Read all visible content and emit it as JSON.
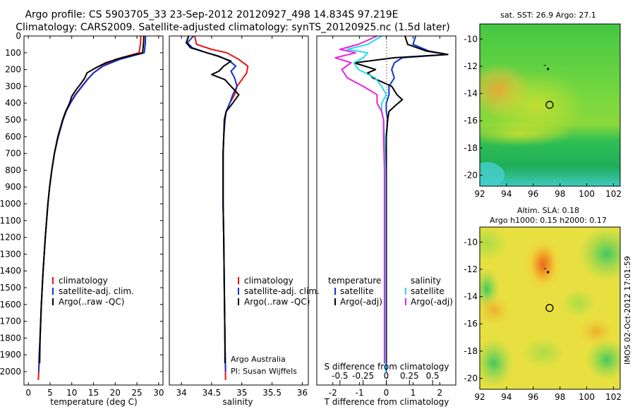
{
  "header": {
    "title_line1": "Argo profile: CS 5903705_33 23-Sep-2012 20120927_498 14.834S 97.219E",
    "title_line2": "Climatology: CARS2009. Satellite-adjusted climatology: synTS_20120925.nc (1.5d later)"
  },
  "colors": {
    "climatology": "#ee1111",
    "satellite": "#1133cc",
    "argo": "#000000",
    "satellite_salinity": "#22ddee",
    "argo_salinity": "#ee22dd",
    "map_float_marker": "#000000"
  },
  "chart_data": [
    {
      "id": "temperature",
      "type": "line",
      "xlabel": "temperature (deg C)",
      "xlim": [
        -1,
        31
      ],
      "ylim": [
        2080,
        0
      ],
      "xticks": [
        0,
        5,
        10,
        15,
        20,
        25,
        30
      ],
      "yticks": [
        0,
        100,
        200,
        300,
        400,
        500,
        600,
        700,
        800,
        900,
        1000,
        1100,
        1200,
        1300,
        1400,
        1500,
        1600,
        1700,
        1800,
        1900,
        2000
      ],
      "legend": [
        "climatology",
        "satellite-adj. clim.",
        "Argo(..raw -QC)"
      ],
      "series": [
        {
          "name": "climatology",
          "color": "#ee1111",
          "depth": [
            0,
            50,
            100,
            140,
            180,
            220,
            260,
            300,
            350,
            400,
            450,
            500,
            600,
            700,
            800,
            900,
            1000,
            1200,
            1400,
            1600,
            1800,
            2000,
            2050
          ],
          "values": [
            25.9,
            25.8,
            25.5,
            20.0,
            17.0,
            15.0,
            13.5,
            12.3,
            10.8,
            9.6,
            8.6,
            7.9,
            6.8,
            6.0,
            5.4,
            4.9,
            4.5,
            3.9,
            3.4,
            3.0,
            2.7,
            2.4,
            2.3
          ]
        },
        {
          "name": "satellite-adj. clim.",
          "color": "#1133cc",
          "depth": [
            0,
            50,
            100,
            140,
            180,
            220,
            260,
            300,
            350,
            400,
            450,
            500,
            600,
            700,
            800,
            900,
            1000,
            1200,
            1400,
            1600,
            1800,
            1900,
            2000
          ],
          "values": [
            27.0,
            26.9,
            26.7,
            21.0,
            17.2,
            15.0,
            13.6,
            12.4,
            10.9,
            9.7,
            8.7,
            8.0,
            6.9,
            6.0,
            5.4,
            4.9,
            4.5,
            3.9,
            3.4,
            3.0,
            2.7,
            2.5,
            2.4
          ]
        },
        {
          "name": "Argo(..raw -QC)",
          "color": "#000000",
          "depth": [
            0,
            50,
            100,
            130,
            160,
            190,
            220,
            250,
            280,
            320,
            360,
            400,
            450,
            500,
            600,
            700,
            800,
            900,
            1000,
            1200,
            1400,
            1600,
            1800,
            1950
          ],
          "values": [
            26.6,
            26.5,
            26.3,
            21.5,
            17.8,
            15.5,
            13.5,
            13.0,
            12.2,
            11.0,
            10.0,
            9.5,
            8.6,
            7.9,
            6.8,
            6.0,
            5.4,
            4.9,
            4.5,
            3.9,
            3.4,
            3.0,
            2.7,
            2.6
          ]
        }
      ]
    },
    {
      "id": "salinity",
      "type": "line",
      "xlabel": "salinity",
      "xlim": [
        33.8,
        36.1
      ],
      "ylim": [
        2080,
        0
      ],
      "xticks": [
        34,
        34.5,
        35,
        35.5,
        36
      ],
      "xticklabels": [
        "34",
        "34.5",
        "35",
        "35.5",
        "36"
      ],
      "legend": [
        "climatology",
        "satellite-adj. clim.",
        "Argo(..raw -QC)"
      ],
      "annotation": [
        "Argo Australia",
        "PI: Susan Wijffels"
      ],
      "series": [
        {
          "name": "climatology",
          "color": "#ee1111",
          "depth": [
            0,
            50,
            80,
            100,
            140,
            180,
            220,
            260,
            300,
            350,
            400,
            450,
            500,
            600,
            700,
            800,
            1000,
            1200,
            1500,
            1800,
            2050
          ],
          "values": [
            34.22,
            34.25,
            34.5,
            34.75,
            34.95,
            35.1,
            35.08,
            35.0,
            34.92,
            34.88,
            34.8,
            34.74,
            34.72,
            34.7,
            34.69,
            34.69,
            34.69,
            34.7,
            34.71,
            34.72,
            34.73
          ]
        },
        {
          "name": "satellite-adj. clim.",
          "color": "#1133cc",
          "depth": [
            0,
            40,
            70,
            100,
            120,
            150,
            180,
            210,
            250,
            300,
            350,
            400,
            450,
            500,
            600,
            700,
            800,
            1000,
            1200,
            1500,
            1800,
            2000
          ],
          "values": [
            34.2,
            34.1,
            34.18,
            34.42,
            34.62,
            34.8,
            34.9,
            34.82,
            34.88,
            34.92,
            34.85,
            34.8,
            34.74,
            34.72,
            34.7,
            34.69,
            34.69,
            34.69,
            34.7,
            34.71,
            34.72,
            34.73
          ]
        },
        {
          "name": "Argo(..raw -QC)",
          "color": "#000000",
          "depth": [
            0,
            40,
            70,
            100,
            120,
            150,
            180,
            210,
            230,
            260,
            300,
            350,
            400,
            450,
            500,
            600,
            700,
            800,
            1000,
            1200,
            1500,
            1800,
            1950
          ],
          "values": [
            34.12,
            34.08,
            34.15,
            34.42,
            34.6,
            34.82,
            34.7,
            34.62,
            34.5,
            34.72,
            34.82,
            34.95,
            34.85,
            34.74,
            34.71,
            34.7,
            34.69,
            34.69,
            34.69,
            34.7,
            34.71,
            34.72,
            34.72
          ]
        }
      ]
    },
    {
      "id": "difference",
      "type": "line",
      "xlabel": "T difference from climatology",
      "top_axis_label": "S difference from climatology",
      "xlim": [
        -2.6,
        2.6
      ],
      "ylim": [
        2080,
        0
      ],
      "xticks": [
        -2,
        -1,
        0,
        1,
        2
      ],
      "top_ticks": [
        -0.5,
        -0.25,
        0,
        0.25,
        0.5
      ],
      "top_ticklabels": [
        "-0.5",
        "-0.25",
        "0",
        "0.25",
        "0.5"
      ],
      "legend_headers": [
        "temperature",
        "salinity"
      ],
      "legend": [
        "satellite",
        "Argo(-adj)",
        "satellite",
        "Argo(-adj)"
      ],
      "series": [
        {
          "name": "temperature satellite",
          "color": "#1133cc",
          "depth": [
            0,
            50,
            90,
            110,
            130,
            160,
            200,
            250,
            300,
            350,
            400,
            450,
            500,
            600,
            800,
            1000,
            1500,
            2000
          ],
          "values": [
            1.1,
            1.0,
            1.6,
            2.3,
            0.6,
            0.3,
            0.2,
            0.3,
            0.1,
            0.1,
            0.0,
            0.0,
            0.05,
            0.0,
            0.0,
            0.0,
            0.0,
            0.0
          ]
        },
        {
          "name": "temperature Argo(-adj)",
          "color": "#000000",
          "depth": [
            0,
            50,
            90,
            110,
            130,
            160,
            200,
            220,
            250,
            300,
            350,
            380,
            420,
            450,
            500,
            600,
            800,
            1000,
            1500,
            1950
          ],
          "values": [
            0.7,
            0.8,
            1.5,
            2.3,
            0.3,
            -1.2,
            -0.4,
            -0.7,
            -0.5,
            0.2,
            0.4,
            0.6,
            0.3,
            0.1,
            0.05,
            0.0,
            0.0,
            0.0,
            0.0,
            0.0
          ]
        },
        {
          "name": "salinity satellite",
          "color": "#22ddee",
          "depth": [
            0,
            50,
            80,
            100,
            130,
            160,
            200,
            250,
            300,
            350,
            400,
            450,
            500,
            600,
            800,
            1000,
            1500,
            2000
          ],
          "values": [
            -0.05,
            -0.2,
            -0.42,
            -0.2,
            -0.25,
            -0.35,
            -0.3,
            -0.12,
            -0.05,
            0.0,
            -0.05,
            -0.05,
            -0.03,
            -0.02,
            -0.01,
            -0.01,
            -0.01,
            -0.01
          ]
        },
        {
          "name": "salinity Argo(-adj)",
          "color": "#ee22dd",
          "depth": [
            0,
            50,
            80,
            100,
            130,
            160,
            200,
            250,
            300,
            350,
            400,
            450,
            500,
            600,
            800,
            1000,
            1500,
            1950
          ],
          "values": [
            -0.1,
            -0.3,
            -0.5,
            -0.33,
            -0.55,
            -0.38,
            -0.48,
            -0.42,
            -0.25,
            -0.1,
            -0.1,
            -0.05,
            -0.03,
            -0.03,
            -0.02,
            -0.02,
            -0.02,
            -0.02
          ]
        }
      ]
    },
    {
      "id": "sst_map",
      "type": "heatmap",
      "title": "sat. SST: 26.9 Argo: 27.1",
      "xlim": [
        92,
        102.5
      ],
      "ylim": [
        -20.8,
        -8.9
      ],
      "xticks": [
        92,
        94,
        96,
        98,
        100,
        102
      ],
      "yticks": [
        -10,
        -12,
        -14,
        -16,
        -18,
        -20
      ],
      "float_position": {
        "lon": 97.219,
        "lat": -14.834
      },
      "previous_position": {
        "lon": 97.0,
        "lat": -12.1
      }
    },
    {
      "id": "sla_map",
      "type": "heatmap",
      "title_line1": "Altim. SLA: 0.18",
      "title_line2": "Argo h1000: 0.15 h2000: 0.17",
      "xlim": [
        92,
        102.5
      ],
      "ylim": [
        -20.8,
        -8.9
      ],
      "xticks": [
        92,
        94,
        96,
        98,
        100,
        102
      ],
      "yticks": [
        -10,
        -12,
        -14,
        -16,
        -18,
        -20
      ],
      "float_position": {
        "lon": 97.219,
        "lat": -14.834
      },
      "previous_position": {
        "lon": 97.0,
        "lat": -12.1
      }
    }
  ],
  "footer": {
    "stamp": "IMOS 02-Oct-2012 17:01:59"
  }
}
